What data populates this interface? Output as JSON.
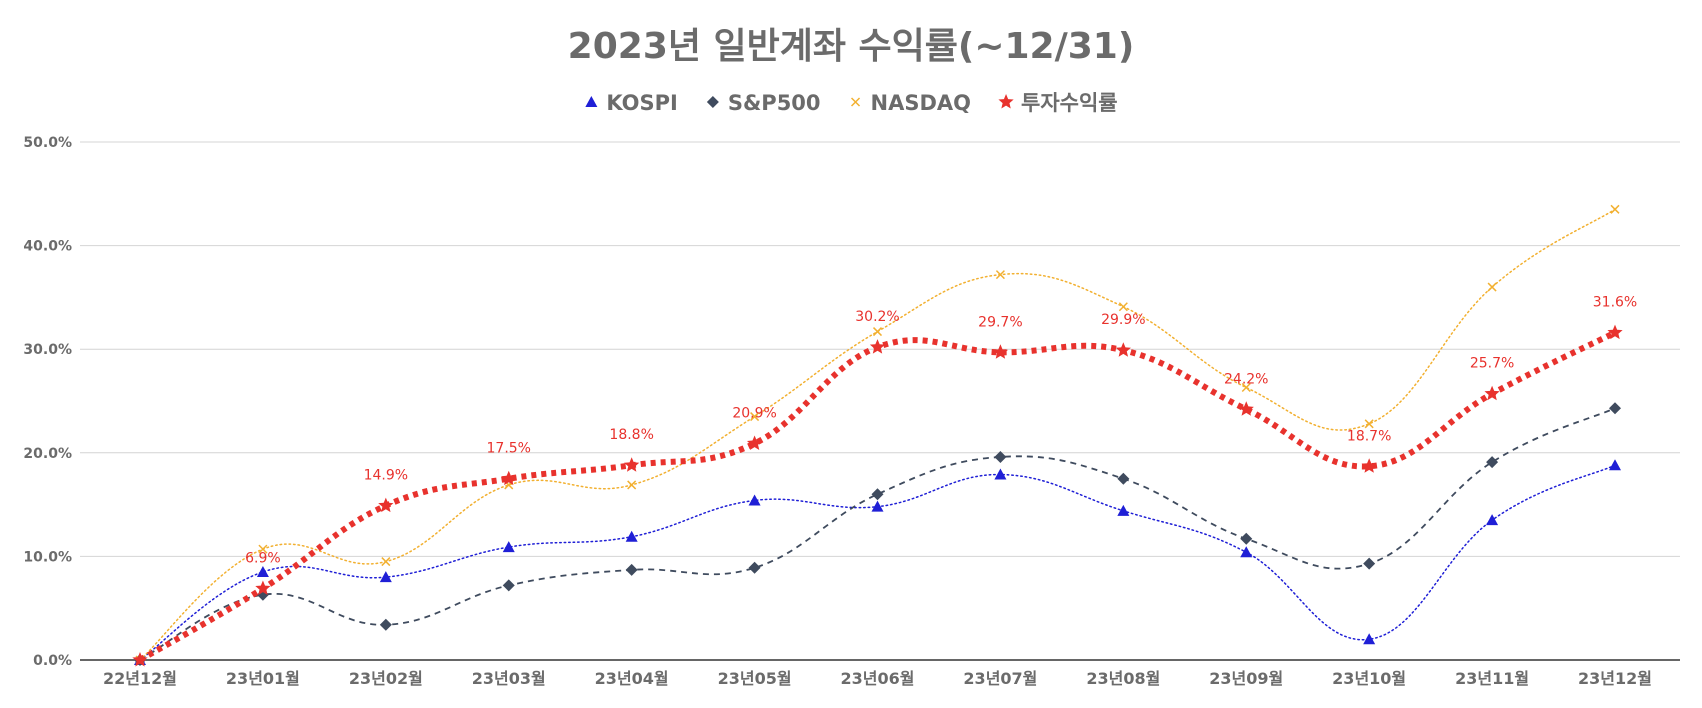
{
  "chart_data": {
    "type": "line",
    "title": "2023년 일반계좌 수익률(~12/31)",
    "xlabel": "",
    "ylabel": "",
    "categories": [
      "22년12월",
      "23년01월",
      "23년02월",
      "23년03월",
      "23년04월",
      "23년05월",
      "23년06월",
      "23년07월",
      "23년08월",
      "23년09월",
      "23년10월",
      "23년11월",
      "23년12월"
    ],
    "y_ticks": [
      "0.0%",
      "10.0%",
      "20.0%",
      "30.0%",
      "40.0%",
      "50.0%"
    ],
    "ylim": [
      0,
      50
    ],
    "grid": true,
    "legend_position": "top-center",
    "series": [
      {
        "name": "KOSPI",
        "marker": "triangle",
        "line_style": "dotted",
        "color": "#1f1fd6",
        "values": [
          0.0,
          8.5,
          8.0,
          10.9,
          11.9,
          15.4,
          14.8,
          17.9,
          14.4,
          10.4,
          2.0,
          13.5,
          18.8
        ]
      },
      {
        "name": "S&P500",
        "marker": "diamond",
        "line_style": "dashed",
        "color": "#3f4b5e",
        "values": [
          0.0,
          6.3,
          3.4,
          7.2,
          8.7,
          8.9,
          16.0,
          19.6,
          17.5,
          11.7,
          9.3,
          19.1,
          24.3
        ]
      },
      {
        "name": "NASDAQ",
        "marker": "x",
        "line_style": "dotted",
        "color": "#f2b030",
        "values": [
          0.0,
          10.7,
          9.5,
          16.9,
          16.9,
          23.5,
          31.7,
          37.2,
          34.1,
          26.3,
          22.8,
          36.0,
          43.5
        ]
      },
      {
        "name": "투자수익률",
        "marker": "star",
        "line_style": "thick-dotted",
        "color": "#e8322d",
        "values": [
          0.0,
          6.9,
          14.9,
          17.5,
          18.8,
          20.9,
          30.2,
          29.7,
          29.9,
          24.2,
          18.7,
          25.7,
          31.6
        ],
        "data_labels": [
          "",
          "6.9%",
          "14.9%",
          "17.5%",
          "18.8%",
          "20.9%",
          "30.2%",
          "29.7%",
          "29.9%",
          "24.2%",
          "18.7%",
          "25.7%",
          "31.6%"
        ]
      }
    ]
  }
}
